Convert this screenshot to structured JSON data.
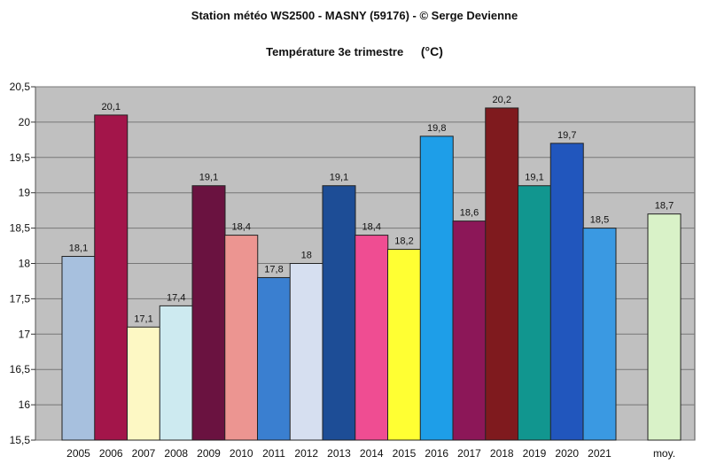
{
  "title": "Station météo WS2500 - MASNY (59176) - © Serge Devienne",
  "subtitle": "Température 3e trimestre",
  "unit": "(°C)",
  "chart_data": {
    "type": "bar",
    "categories": [
      "2005",
      "2006",
      "2007",
      "2008",
      "2009",
      "2010",
      "2011",
      "2012",
      "2013",
      "2014",
      "2015",
      "2016",
      "2017",
      "2018",
      "2019",
      "2020",
      "2021",
      "moy."
    ],
    "values": [
      18.1,
      20.1,
      17.1,
      17.4,
      19.1,
      18.4,
      17.8,
      18,
      19.1,
      18.4,
      18.2,
      19.8,
      18.6,
      20.2,
      19.1,
      19.7,
      18.5,
      18.7
    ],
    "data_labels": [
      "18,1",
      "20,1",
      "17,1",
      "17,4",
      "19,1",
      "18,4",
      "17,8",
      "18",
      "19,1",
      "18,4",
      "18,2",
      "19,8",
      "18,6",
      "20,2",
      "19,1",
      "19,7",
      "18,5",
      "18,7"
    ],
    "colors": [
      "#a7c0de",
      "#a3154a",
      "#fdf8c4",
      "#cdeaf0",
      "#6a1240",
      "#ec9591",
      "#3a7fd0",
      "#d6dff0",
      "#1d4d96",
      "#ef4d92",
      "#ffff33",
      "#1e9ee8",
      "#8c1758",
      "#7f1a1e",
      "#11968f",
      "#2156bd",
      "#3a99e2",
      "#d9f2c8"
    ],
    "ylim": [
      15.5,
      20.5
    ],
    "ytick_values": [
      15.5,
      16,
      16.5,
      17,
      17.5,
      18,
      18.5,
      19,
      19.5,
      20,
      20.5
    ],
    "ytick_labels": [
      "15,5",
      "16",
      "16,5",
      "17",
      "17,5",
      "18",
      "18,5",
      "19",
      "19,5",
      "20",
      "20,5"
    ],
    "xlabel": "",
    "ylabel": "",
    "grid": true,
    "plot_background": "#c0c0c0"
  }
}
